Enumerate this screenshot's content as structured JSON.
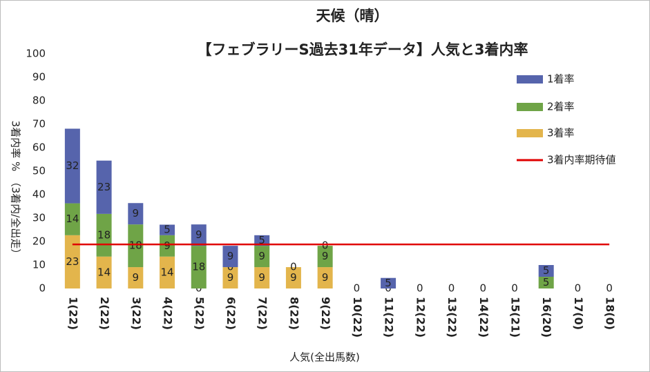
{
  "chart_data": {
    "type": "bar",
    "stacked": true,
    "title": "天候（晴）",
    "subtitle": "【フェブラリーS過去31年データ】人気と3着内率",
    "x_label": "人気(全出馬数)",
    "y_label": "3着内率 %　（3着内/全出走）",
    "categories": [
      "1(22)",
      "2(22)",
      "3(22)",
      "4(22)",
      "5(22)",
      "6(22)",
      "7(22)",
      "8(22)",
      "9(22)",
      "10(22)",
      "11(22)",
      "12(22)",
      "13(22)",
      "14(22)",
      "15(21)",
      "16(20)",
      "17(0)",
      "18(0)"
    ],
    "series": [
      {
        "name": "3着率",
        "color": "#e3b54c",
        "values": [
          22.7,
          13.6,
          9.1,
          13.6,
          0,
          9.1,
          9.1,
          9.1,
          9.1,
          0,
          0,
          0,
          0,
          0,
          0,
          0,
          0,
          0
        ],
        "value_labels": [
          "23",
          "14",
          "9",
          "14",
          "0",
          "9",
          "9",
          "9",
          "9",
          null,
          null,
          null,
          null,
          null,
          null,
          null,
          null,
          null
        ]
      },
      {
        "name": "2着率",
        "color": "#6fa447",
        "values": [
          13.6,
          18.2,
          18.2,
          9.1,
          18.2,
          0,
          9.1,
          0,
          9.1,
          0,
          0,
          0,
          0,
          0,
          0,
          5,
          0,
          0
        ],
        "value_labels": [
          "14",
          "18",
          "18",
          "9",
          "18",
          "0",
          "9",
          null,
          "9",
          null,
          "0",
          null,
          null,
          null,
          null,
          "5",
          null,
          null
        ]
      },
      {
        "name": "1着率",
        "color": "#5664ac",
        "values": [
          31.8,
          22.7,
          9.1,
          4.5,
          9.1,
          9.1,
          4.5,
          0,
          0,
          0,
          4.5,
          0,
          0,
          0,
          0,
          5,
          0,
          0
        ],
        "value_labels": [
          "32",
          "23",
          "9",
          "5",
          "9",
          "9",
          "5",
          "0",
          "0",
          "0",
          "5",
          "0",
          "0",
          "0",
          "0",
          "5",
          "0",
          "0"
        ]
      },
      {
        "name": "3着内率期待値",
        "type": "line",
        "color": "#e00000",
        "values": [
          18.8,
          18.8,
          18.8,
          18.8,
          18.8,
          18.8,
          18.8,
          18.8,
          18.8,
          18.8,
          18.8,
          18.8,
          18.8,
          18.8,
          18.8,
          18.8,
          18.8,
          18.8
        ]
      }
    ],
    "ylim": [
      0,
      100
    ],
    "yticks": [
      0,
      10,
      20,
      30,
      40,
      50,
      60,
      70,
      80,
      90,
      100
    ],
    "grid": false,
    "legend": "top-right"
  }
}
